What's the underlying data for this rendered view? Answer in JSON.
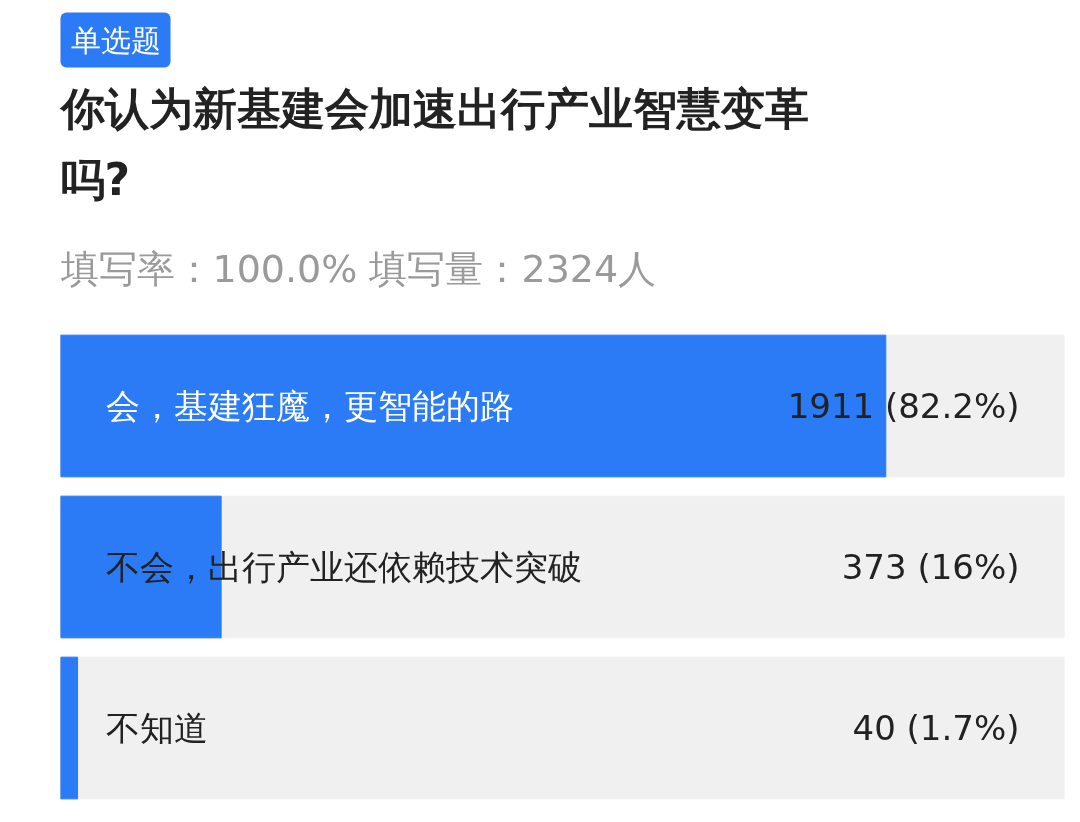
{
  "chart_data": {
    "type": "bar",
    "orientation": "horizontal",
    "title": "你认为新基建会加速出行产业智慧变革吗?",
    "subtitle": "填写率：100.0%   填写量：2324人",
    "annotations": [
      "单选题"
    ],
    "categories": [
      "会，基建狂魔，更智能的路",
      "不会，出行产业还依赖技术突破",
      "不知道"
    ],
    "values": [
      82.2,
      16,
      1.7
    ],
    "value_labels": [
      "1911 (82.2%)",
      "373 (16%)",
      "40 (1.7%)"
    ],
    "color": "#2a7bf5",
    "xlim": [
      0,
      100
    ],
    "tick_labels": false,
    "grid": false
  }
}
